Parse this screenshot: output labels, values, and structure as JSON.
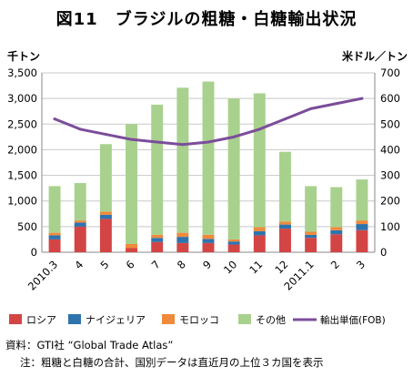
{
  "title": "図11　ブラジルの粗糖・白糖輸出状況",
  "source_note": "資料：GTI社 “Global Trade Atlas”",
  "footnote": "注：粗糖と白糖の合計、国別データは直近月の上位３カ国を表示",
  "colors": {
    "russia": "#d34544",
    "nigeria": "#2f73ad",
    "morocco": "#ef8a3c",
    "other": "#a9d18e",
    "price_line": "#7b4d9a",
    "grid": "#c8c8c8"
  },
  "chart_data": {
    "type": "bar",
    "stacked": true,
    "categories": [
      "2010.3",
      "4",
      "5",
      "6",
      "7",
      "8",
      "9",
      "10",
      "11",
      "12",
      "2011.1",
      "2",
      "3"
    ],
    "ylabel": "千トン",
    "y2label": "米ドル／トン",
    "ylim": [
      0,
      3500
    ],
    "y2lim": [
      0,
      700
    ],
    "yticks": [
      "0",
      "500",
      "1,000",
      "1,500",
      "2,000",
      "2,500",
      "3,000",
      "3,500"
    ],
    "y2ticks": [
      "0",
      "100",
      "200",
      "300",
      "400",
      "500",
      "600",
      "700"
    ],
    "grid": true,
    "legend_position": "bottom",
    "series": [
      {
        "name": "ロシア",
        "color_key": "russia",
        "values": [
          250,
          500,
          650,
          80,
          200,
          180,
          180,
          150,
          330,
          460,
          280,
          350,
          430
        ]
      },
      {
        "name": "ナイジェリア",
        "color_key": "nigeria",
        "values": [
          80,
          80,
          80,
          0,
          80,
          120,
          80,
          60,
          80,
          80,
          60,
          80,
          120
        ]
      },
      {
        "name": "モロッコ",
        "color_key": "morocco",
        "values": [
          50,
          40,
          60,
          80,
          60,
          80,
          80,
          40,
          80,
          60,
          60,
          60,
          70
        ]
      },
      {
        "name": "その他",
        "color_key": "other",
        "values": [
          910,
          730,
          1320,
          2340,
          2540,
          2830,
          2990,
          2750,
          2610,
          1360,
          890,
          780,
          800
        ]
      }
    ],
    "line_series": {
      "name": "輸出単価(FOB)",
      "color_key": "price_line",
      "axis": "right",
      "values": [
        520,
        480,
        460,
        440,
        430,
        420,
        430,
        450,
        480,
        520,
        560,
        580,
        600
      ]
    }
  }
}
